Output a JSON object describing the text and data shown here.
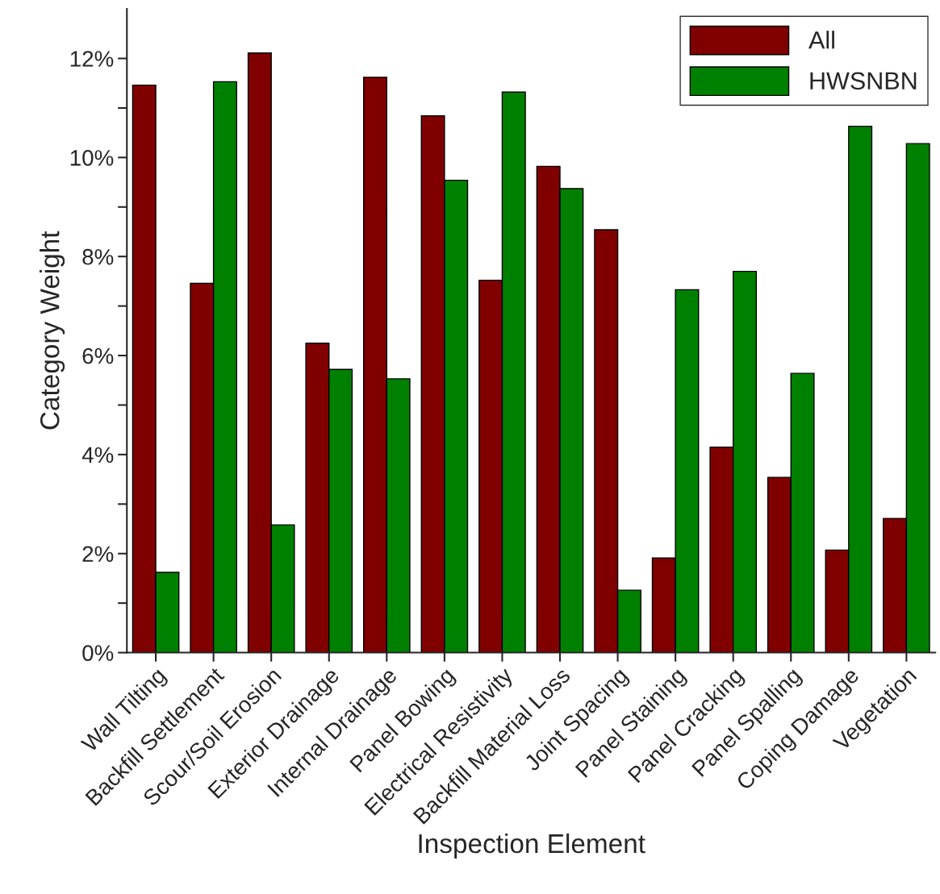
{
  "chart_data": {
    "type": "bar",
    "xlabel": "Inspection Element",
    "ylabel": "Category Weight",
    "categories": [
      "Wall Tilting",
      "Backfill Settlement",
      "Scour/Soil Erosion",
      "Exterior Drainage",
      "Internal Drainage",
      "Panel Bowing",
      "Electrical Resistivity",
      "Backfill Material Loss",
      "Joint Spacing",
      "Panel Staining",
      "Panel Cracking",
      "Panel Spalling",
      "Coping Damage",
      "Vegetation"
    ],
    "series": [
      {
        "name": "All",
        "color": "#800000",
        "values": [
          11.46,
          7.46,
          12.11,
          6.25,
          11.62,
          10.84,
          7.52,
          9.82,
          8.54,
          1.91,
          4.15,
          3.54,
          2.07,
          2.71
        ]
      },
      {
        "name": "HWSNBN",
        "color": "#008000",
        "values": [
          1.62,
          11.53,
          2.58,
          5.72,
          5.53,
          9.54,
          11.32,
          9.37,
          1.26,
          7.33,
          7.7,
          5.64,
          10.63,
          10.28
        ]
      }
    ],
    "ylim": [
      0,
      13
    ],
    "yticks": [
      {
        "value": 0,
        "label": "0%"
      },
      {
        "value": 1,
        "label": null
      },
      {
        "value": 2,
        "label": "2%"
      },
      {
        "value": 3,
        "label": null
      },
      {
        "value": 4,
        "label": "4%"
      },
      {
        "value": 5,
        "label": null
      },
      {
        "value": 6,
        "label": "6%"
      },
      {
        "value": 7,
        "label": null
      },
      {
        "value": 8,
        "label": "8%"
      },
      {
        "value": 9,
        "label": null
      },
      {
        "value": 10,
        "label": "10%"
      },
      {
        "value": 11,
        "label": null
      },
      {
        "value": 12,
        "label": "12%"
      }
    ],
    "grid": false,
    "legend": "top right"
  }
}
